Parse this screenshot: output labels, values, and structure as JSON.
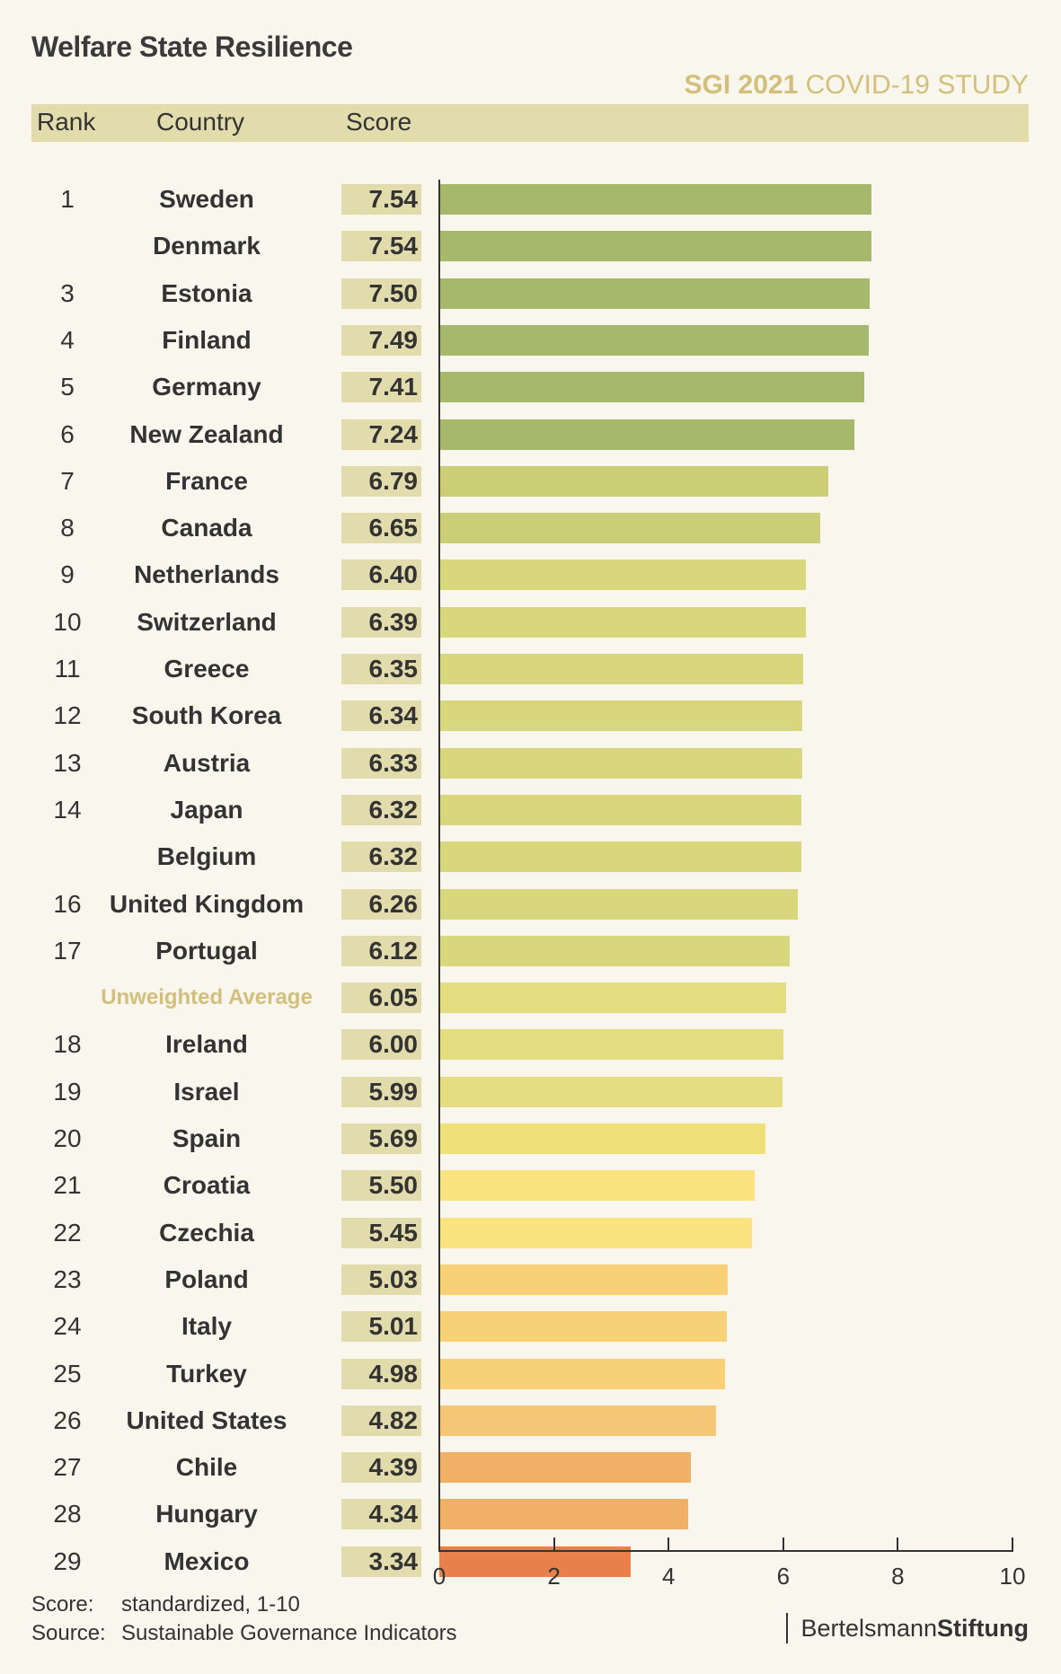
{
  "title": "Welfare State Resilience",
  "study": {
    "bold": "SGI 2021",
    "rest": "COVID-19 STUDY"
  },
  "header": {
    "rank": "Rank",
    "country": "Country",
    "score": "Score"
  },
  "footer": {
    "score_key": "Score:",
    "score_val": "standardized, 1-10",
    "source_key": "Source:",
    "source_val": "Sustainable Governance Indicators"
  },
  "logo": {
    "light": "Bertelsmann",
    "bold": "Stiftung"
  },
  "chart_data": {
    "type": "bar",
    "orientation": "horizontal",
    "xlim": [
      0,
      10
    ],
    "xticks": [
      "0",
      "2",
      "4",
      "6",
      "8",
      "10"
    ],
    "rows": [
      {
        "rank": "1",
        "country": "Sweden",
        "score": "7.54",
        "value": 7.54,
        "color": "#a5b86b"
      },
      {
        "rank": "",
        "country": "Denmark",
        "score": "7.54",
        "value": 7.54,
        "color": "#a5b86b"
      },
      {
        "rank": "3",
        "country": "Estonia",
        "score": "7.50",
        "value": 7.5,
        "color": "#a5b86b"
      },
      {
        "rank": "4",
        "country": "Finland",
        "score": "7.49",
        "value": 7.49,
        "color": "#a5b86b"
      },
      {
        "rank": "5",
        "country": "Germany",
        "score": "7.41",
        "value": 7.41,
        "color": "#a5b86b"
      },
      {
        "rank": "6",
        "country": "New Zealand",
        "score": "7.24",
        "value": 7.24,
        "color": "#a5b86b"
      },
      {
        "rank": "7",
        "country": "France",
        "score": "6.79",
        "value": 6.79,
        "color": "#cccd77"
      },
      {
        "rank": "8",
        "country": "Canada",
        "score": "6.65",
        "value": 6.65,
        "color": "#cccd77"
      },
      {
        "rank": "9",
        "country": "Netherlands",
        "score": "6.40",
        "value": 6.4,
        "color": "#d8d77e"
      },
      {
        "rank": "10",
        "country": "Switzerland",
        "score": "6.39",
        "value": 6.39,
        "color": "#d8d77e"
      },
      {
        "rank": "11",
        "country": "Greece",
        "score": "6.35",
        "value": 6.35,
        "color": "#d8d77e"
      },
      {
        "rank": "12",
        "country": "South Korea",
        "score": "6.34",
        "value": 6.34,
        "color": "#d8d77e"
      },
      {
        "rank": "13",
        "country": "Austria",
        "score": "6.33",
        "value": 6.33,
        "color": "#d8d77e"
      },
      {
        "rank": "14",
        "country": "Japan",
        "score": "6.32",
        "value": 6.32,
        "color": "#d8d77e"
      },
      {
        "rank": "",
        "country": "Belgium",
        "score": "6.32",
        "value": 6.32,
        "color": "#d8d77e"
      },
      {
        "rank": "16",
        "country": "United Kingdom",
        "score": "6.26",
        "value": 6.26,
        "color": "#d8d77e"
      },
      {
        "rank": "17",
        "country": "Portugal",
        "score": "6.12",
        "value": 6.12,
        "color": "#d8d77e"
      },
      {
        "rank": "",
        "country": "Unweighted Average",
        "score": "6.05",
        "value": 6.05,
        "color": "#e3dc80",
        "average": true
      },
      {
        "rank": "18",
        "country": "Ireland",
        "score": "6.00",
        "value": 6.0,
        "color": "#e3dc80"
      },
      {
        "rank": "19",
        "country": "Israel",
        "score": "5.99",
        "value": 5.99,
        "color": "#e3dc80"
      },
      {
        "rank": "20",
        "country": "Spain",
        "score": "5.69",
        "value": 5.69,
        "color": "#f0e07a"
      },
      {
        "rank": "21",
        "country": "Croatia",
        "score": "5.50",
        "value": 5.5,
        "color": "#fbe47f"
      },
      {
        "rank": "22",
        "country": "Czechia",
        "score": "5.45",
        "value": 5.45,
        "color": "#fbe47f"
      },
      {
        "rank": "23",
        "country": "Poland",
        "score": "5.03",
        "value": 5.03,
        "color": "#f7d078"
      },
      {
        "rank": "24",
        "country": "Italy",
        "score": "5.01",
        "value": 5.01,
        "color": "#f7d078"
      },
      {
        "rank": "25",
        "country": "Turkey",
        "score": "4.98",
        "value": 4.98,
        "color": "#f7d078"
      },
      {
        "rank": "26",
        "country": "United States",
        "score": "4.82",
        "value": 4.82,
        "color": "#f4c676"
      },
      {
        "rank": "27",
        "country": "Chile",
        "score": "4.39",
        "value": 4.39,
        "color": "#f0b066"
      },
      {
        "rank": "28",
        "country": "Hungary",
        "score": "4.34",
        "value": 4.34,
        "color": "#f0b066"
      },
      {
        "rank": "29",
        "country": "Mexico",
        "score": "3.34",
        "value": 3.34,
        "color": "#e8804c"
      }
    ]
  }
}
